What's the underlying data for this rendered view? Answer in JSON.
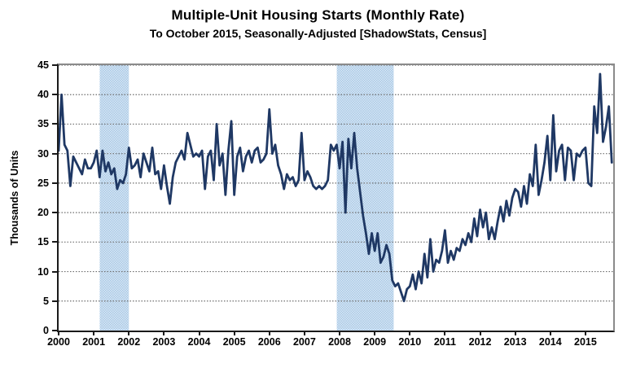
{
  "header": {
    "title": "Multiple-Unit Housing Starts (Monthly Rate)",
    "subtitle": "To October 2015, Seasonally-Adjusted [ShadowStats, Census]"
  },
  "chart_data": {
    "type": "line",
    "title": "Multiple-Unit Housing Starts (Monthly Rate)",
    "subtitle": "To October 2015, Seasonally-Adjusted [ShadowStats, Census]",
    "ylabel": "Thousands of Units",
    "xlabel": "",
    "ylim": [
      0,
      45
    ],
    "yticks": [
      0,
      5,
      10,
      15,
      20,
      25,
      30,
      35,
      40,
      45
    ],
    "xticks": [
      2000,
      2001,
      2002,
      2003,
      2004,
      2005,
      2006,
      2007,
      2008,
      2009,
      2010,
      2011,
      2012,
      2013,
      2014,
      2015
    ],
    "x_start": 2000.0,
    "x_end": 2015.79,
    "grid": "horizontal-dotted",
    "legend_position": "none",
    "frequency": "monthly",
    "first_month": "2000-01",
    "last_month": "2015-10",
    "recession_bands": [
      {
        "start": 2001.17,
        "end": 2002.0
      },
      {
        "start": 2007.92,
        "end": 2009.54
      }
    ],
    "series": [
      {
        "name": "Multiple-unit housing starts, thousands of units (monthly rate)",
        "color": "#1F3864",
        "values": [
          30.5,
          40,
          31.5,
          30.5,
          24.5,
          29.5,
          28.5,
          27.5,
          26.5,
          29,
          27.5,
          27.5,
          28.5,
          30.5,
          26,
          30.5,
          27,
          28.5,
          26.5,
          27.5,
          24,
          25.5,
          25,
          26.5,
          31,
          27.5,
          28,
          29,
          26,
          30,
          28.5,
          27,
          31,
          26.5,
          27,
          24,
          28,
          24.5,
          21.5,
          26,
          28.5,
          29.5,
          30.5,
          29,
          33.5,
          31.5,
          29.5,
          30,
          29.5,
          30.5,
          24,
          29.5,
          30.5,
          25.5,
          35,
          28,
          30,
          23,
          30.5,
          35.5,
          23,
          29.5,
          31,
          27,
          29.5,
          30.5,
          28.5,
          30.5,
          31,
          28.5,
          29,
          30,
          37.5,
          30,
          31.5,
          28,
          26.5,
          24,
          26.5,
          25.5,
          26,
          24.5,
          25.5,
          33.5,
          25.5,
          27,
          26,
          24.5,
          24,
          24.5,
          24,
          24.5,
          25.5,
          31.5,
          30.5,
          31.5,
          27.5,
          32,
          20,
          32.5,
          27.5,
          33.5,
          27.5,
          23.5,
          19.5,
          16.5,
          13,
          16.5,
          13.5,
          16.5,
          11.5,
          12.5,
          14.5,
          13,
          8.5,
          7.5,
          8,
          6.5,
          5,
          7,
          7.5,
          9.5,
          7,
          10,
          8,
          13,
          9,
          15.5,
          10,
          12,
          11.5,
          13.5,
          17,
          11.5,
          13.5,
          12,
          14,
          13.5,
          15.5,
          14.5,
          16.5,
          15,
          19,
          16,
          20.5,
          17.5,
          20,
          15.5,
          17.5,
          15.5,
          18.5,
          21,
          18.5,
          22,
          19.5,
          22.5,
          24,
          23.5,
          21,
          24.5,
          21.5,
          26.5,
          24.5,
          31.5,
          23,
          25.5,
          28.5,
          33,
          25.5,
          36.5,
          27,
          30.5,
          31.5,
          25.5,
          31,
          30.5,
          25.5,
          30,
          29.5,
          30.5,
          31,
          25,
          24.5,
          38,
          33.5,
          43.5,
          32,
          34.5,
          38,
          28.5
        ]
      }
    ],
    "colors": {
      "line": "#1F3864",
      "band_base": "#D9E7F5",
      "band_dot": "#A9C9E5",
      "grid": "#6e6e6e",
      "axis": "#1a1a1a",
      "text": "#000000"
    }
  }
}
